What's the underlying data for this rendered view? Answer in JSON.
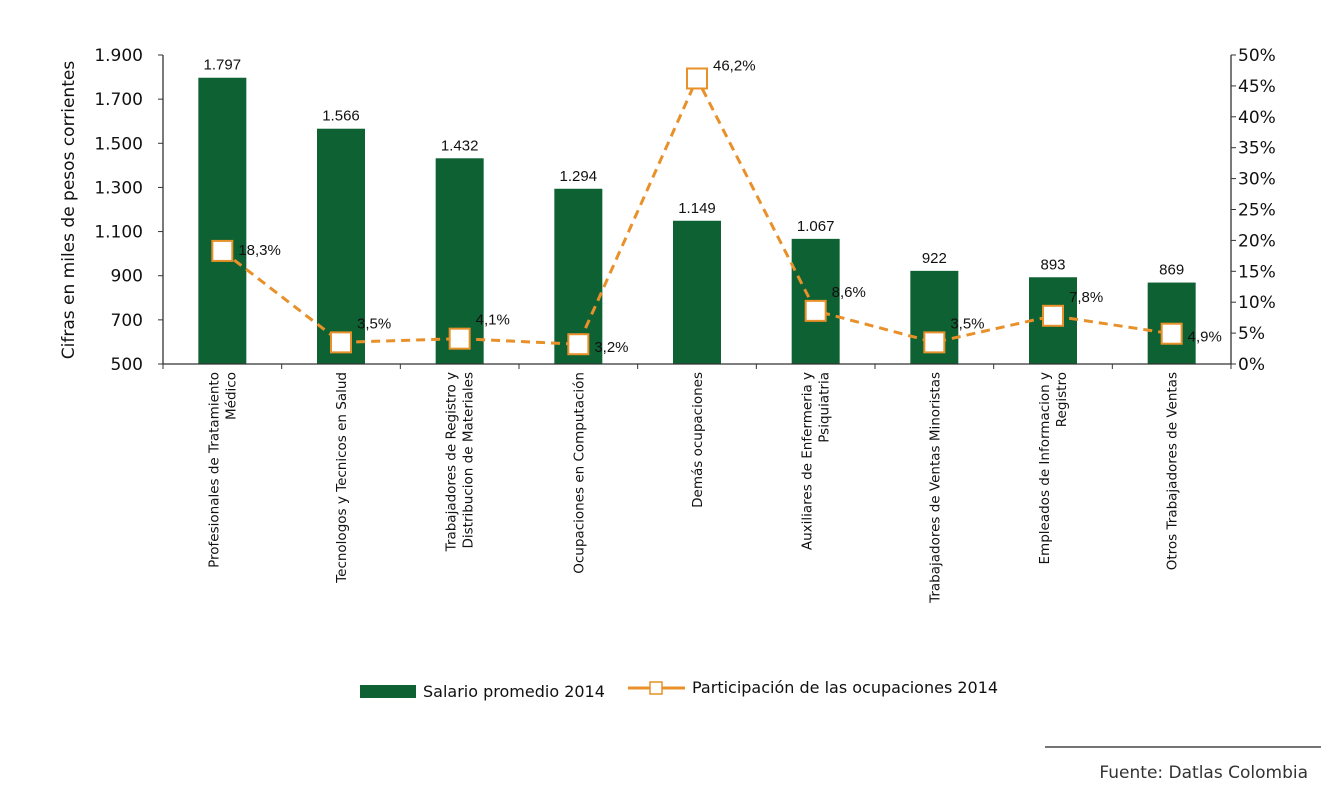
{
  "chart_data": {
    "type": "bar",
    "categories": [
      [
        "Profesionales de Tratamiento",
        "Médico"
      ],
      [
        "Tecnologos y Tecnicos en Salud"
      ],
      [
        "Trabajadores de Registro y",
        "Distribucion de Materiales"
      ],
      [
        "Ocupaciones en Computación"
      ],
      [
        "Demás ocupaciones"
      ],
      [
        "Auxiliares de Enfermeria y",
        "Psiquiatria"
      ],
      [
        "Trabajadores de Ventas Minoristas"
      ],
      [
        "Empleados de Informacion y",
        "Registro"
      ],
      [
        "Otros Trabajadores de Ventas"
      ]
    ],
    "series": [
      {
        "name": "Salario promedio 2014",
        "type": "bar",
        "axis": "left",
        "color": "#0e6132",
        "values": [
          1797,
          1566,
          1432,
          1294,
          1149,
          1067,
          922,
          893,
          869
        ],
        "labels": [
          "1.797",
          "1.566",
          "1.432",
          "1.294",
          "1.149",
          "1.067",
          "922",
          "893",
          "869"
        ]
      },
      {
        "name": "Participación de las ocupaciones 2014",
        "type": "line",
        "axis": "right",
        "color": "#e8902a",
        "values": [
          18.3,
          3.5,
          4.1,
          3.2,
          46.2,
          8.6,
          3.5,
          7.8,
          4.9
        ],
        "labels": [
          "18,3%",
          "3,5%",
          "4,1%",
          "3,2%",
          "46,2%",
          "8,6%",
          "3,5%",
          "7,8%",
          "4,9%"
        ]
      }
    ],
    "ylabel": "Cifras en miles de pesos corrientes",
    "ylim": [
      500,
      1900
    ],
    "yticks": [
      "500",
      "700",
      "900",
      "1.100",
      "1.300",
      "1.500",
      "1.700",
      "1.900"
    ],
    "y2lim": [
      0,
      50
    ],
    "y2ticks": [
      "0%",
      "5%",
      "10%",
      "15%",
      "20%",
      "25%",
      "30%",
      "35%",
      "40%",
      "45%",
      "50%"
    ],
    "legend": "bottom",
    "grid": false
  },
  "source": "Fuente: Datlas Colombia"
}
